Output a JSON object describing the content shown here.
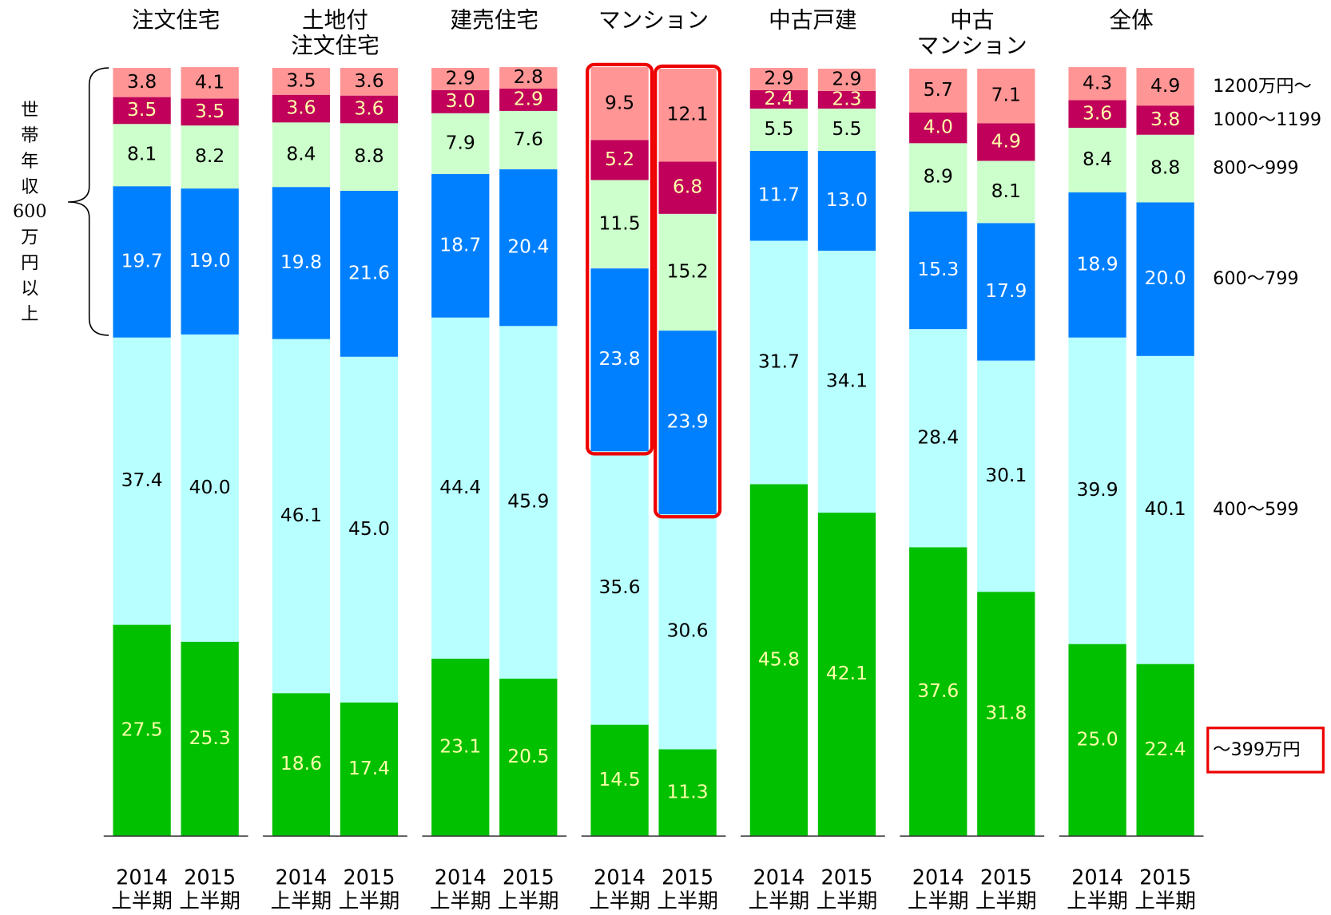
{
  "chart_data": {
    "type": "stacked_bar",
    "groups": [
      "注文住宅",
      "土地付\n注文住宅",
      "建売住宅",
      "マンション",
      "中古戸建",
      "中古\nマンション",
      "全体"
    ],
    "categories": [
      "2014\n上半期",
      "2015\n上半期",
      "2014\n上半期",
      "2015\n上半期",
      "2014\n上半期",
      "2015\n上半期",
      "2014\n上半期",
      "2015\n上半期",
      "2014\n上半期",
      "2015\n上半期",
      "2014\n上半期",
      "2015\n上半期",
      "2014\n上半期",
      "2015\n上半期"
    ],
    "ylim": [
      0,
      100
    ],
    "annotation": "世帯年収600万円以上",
    "series": [
      {
        "name": "～399万円",
        "color": "#00c000",
        "text_color": "#ffffaa",
        "values": [
          27.5,
          25.3,
          18.6,
          17.4,
          23.1,
          20.5,
          14.5,
          11.3,
          45.8,
          42.1,
          37.6,
          31.8,
          25.0,
          22.4
        ],
        "value_labels": [
          "27.5",
          "25.3",
          "18.6",
          "17.4",
          "23.1",
          "20.5",
          "14.5",
          "11.3",
          "45.8",
          "42.1",
          "37.6",
          "31.8",
          "25.0",
          "22.4"
        ]
      },
      {
        "name": "400～599",
        "color": "#b8ffff",
        "text_color": "#000000",
        "values": [
          37.4,
          40.0,
          46.1,
          45.0,
          44.4,
          45.9,
          35.6,
          30.6,
          31.7,
          34.1,
          28.4,
          30.1,
          39.9,
          40.1
        ],
        "value_labels": [
          "37.4",
          "40.0",
          "46.1",
          "45.0",
          "44.4",
          "45.9",
          "35.6",
          "30.6",
          "31.7",
          "34.1",
          "28.4",
          "30.1",
          "39.9",
          "40.1"
        ]
      },
      {
        "name": "600～799",
        "color": "#0080ff",
        "text_color": "#ffffff",
        "values": [
          19.7,
          19.0,
          19.8,
          21.6,
          18.7,
          20.4,
          23.8,
          23.9,
          11.7,
          13.0,
          15.3,
          17.9,
          18.9,
          20.0
        ],
        "value_labels": [
          "19.7",
          "19.0",
          "19.8",
          "21.6",
          "18.7",
          "20.4",
          "23.8",
          "23.9",
          "11.7",
          "13.0",
          "15.3",
          "17.9",
          "18.9",
          "20.0"
        ]
      },
      {
        "name": "800～999",
        "color": "#ccffcc",
        "text_color": "#000000",
        "values": [
          8.1,
          8.2,
          8.4,
          8.8,
          7.9,
          7.6,
          11.5,
          15.2,
          5.5,
          5.5,
          8.9,
          8.1,
          8.4,
          8.8
        ],
        "value_labels": [
          "8.1",
          "8.2",
          "8.4",
          "8.8",
          "7.9",
          "7.6",
          "11.5",
          "15.2",
          "5.5",
          "5.5",
          "8.9",
          "8.1",
          "8.4",
          "8.8"
        ]
      },
      {
        "name": "1000～1199",
        "color": "#c0005a",
        "text_color": "#ffffaa",
        "values": [
          3.5,
          3.5,
          3.6,
          3.6,
          3.0,
          2.9,
          5.2,
          6.8,
          2.4,
          2.3,
          4.0,
          4.9,
          3.6,
          3.8
        ],
        "value_labels": [
          "3.5",
          "3.5",
          "3.6",
          "3.6",
          "3.0",
          "2.9",
          "5.2",
          "6.8",
          "2.4",
          "2.3",
          "4.0",
          "4.9",
          "3.6",
          "3.8"
        ]
      },
      {
        "name": "1200万円～",
        "color": "#ff9595",
        "text_color": "#000000",
        "values": [
          3.8,
          4.1,
          3.5,
          3.6,
          2.9,
          2.8,
          9.5,
          12.1,
          2.9,
          2.9,
          5.7,
          7.1,
          4.3,
          4.9
        ],
        "value_labels": [
          "3.8",
          "4.1",
          "3.5",
          "3.6",
          "2.9",
          "2.8",
          "9.5",
          "12.1",
          "2.9",
          "2.9",
          "5.7",
          "7.1",
          "4.3",
          "4.9"
        ]
      }
    ]
  }
}
